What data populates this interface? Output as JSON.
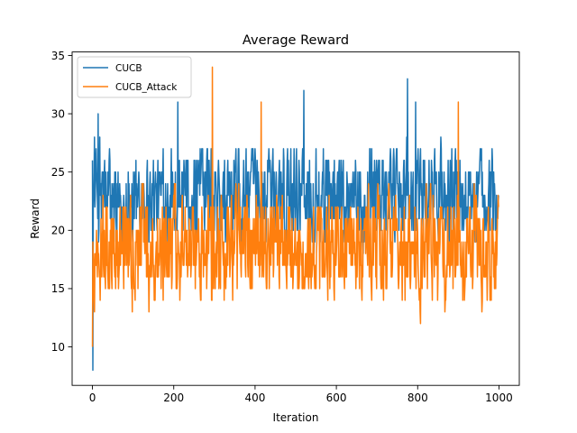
{
  "chart_data": {
    "type": "line",
    "title": "Average Reward",
    "xlabel": "Iteration",
    "ylabel": "Reward",
    "xlim": [
      -50,
      1050
    ],
    "ylim": [
      6.7,
      35.3
    ],
    "xticks": [
      0,
      200,
      400,
      600,
      800,
      1000
    ],
    "yticks": [
      10,
      15,
      20,
      25,
      30,
      35
    ],
    "grid": false,
    "legend_position": "upper-left",
    "series": [
      {
        "name": "CUCB",
        "color": "#1f77b4",
        "n_points": 1000,
        "x_range": [
          0,
          999
        ],
        "y_min": 8,
        "y_max": 33,
        "typical_range": [
          19,
          27
        ],
        "peaks": [
          {
            "x": 1,
            "y": 8
          },
          {
            "x": 14,
            "y": 30
          },
          {
            "x": 210,
            "y": 31
          },
          {
            "x": 520,
            "y": 32
          },
          {
            "x": 775,
            "y": 33
          },
          {
            "x": 795,
            "y": 31
          }
        ]
      },
      {
        "name": "CUCB_Attack",
        "color": "#ff7f0e",
        "n_points": 1000,
        "x_range": [
          0,
          999
        ],
        "y_min": 10,
        "y_max": 34,
        "typical_range": [
          14,
          23
        ],
        "peaks": [
          {
            "x": 0,
            "y": 10
          },
          {
            "x": 295,
            "y": 34
          },
          {
            "x": 415,
            "y": 31
          },
          {
            "x": 900,
            "y": 31
          }
        ]
      }
    ]
  }
}
